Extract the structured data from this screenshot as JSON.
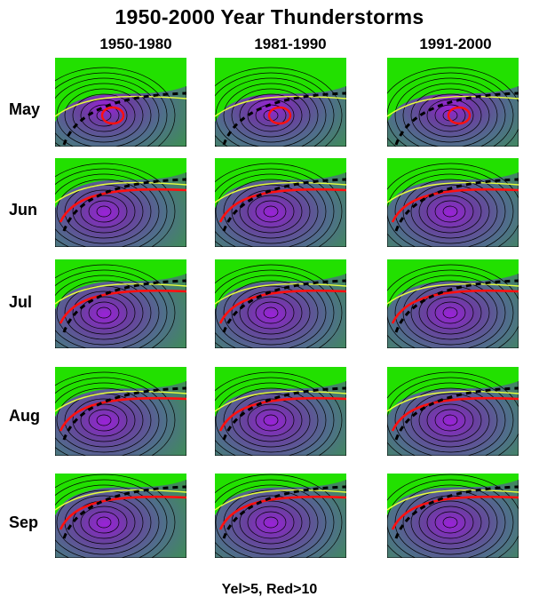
{
  "title": "1950-2000 Year  Thunderstorms",
  "columns": [
    "1950-1980",
    "1981-1990",
    "1991-2000"
  ],
  "rows": [
    "May",
    "Jun",
    "Jul",
    "Aug",
    "Sep"
  ],
  "legend_note": "Yel>5, Red>10",
  "colors": {
    "land_green": "#22e000",
    "field_dark_green": "#3d8f52",
    "field_mid": "#4f6f8a",
    "field_purple": "#6a3fa0",
    "core_purple": "#9a22d8",
    "contour": "#000000",
    "yellow_line": "#e8ff3c",
    "red_line": "#ff1010",
    "dashed_line": "#000000"
  }
}
